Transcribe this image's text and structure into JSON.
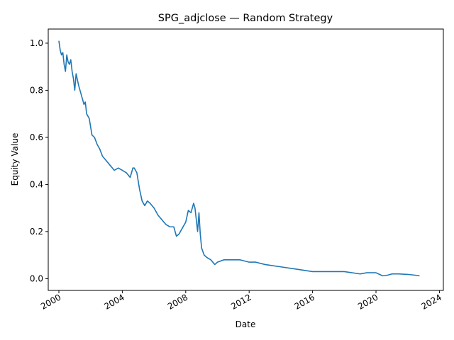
{
  "chart_data": {
    "type": "line",
    "title": "SPG_adjclose — Random Strategy",
    "xlabel": "Date",
    "ylabel": "Equity Value",
    "xlim": [
      "1999-05-01",
      "2024-04-01"
    ],
    "ylim": [
      -0.05,
      1.06
    ],
    "xticks": [
      "2000",
      "2004",
      "2008",
      "2012",
      "2016",
      "2020",
      "2024"
    ],
    "yticks": [
      "0.0",
      "0.2",
      "0.4",
      "0.6",
      "0.8",
      "1.0"
    ],
    "grid": false,
    "line_color": "#1f77b4",
    "series": [
      {
        "x": [
          "2000-01-01",
          "2000-02-01",
          "2000-03-01",
          "2000-04-01",
          "2000-05-01",
          "2000-06-01",
          "2000-07-01",
          "2000-08-01",
          "2000-09-01",
          "2000-10-01",
          "2000-11-01",
          "2000-12-01",
          "2001-01-01",
          "2001-02-01",
          "2001-04-01",
          "2001-06-01",
          "2001-08-01",
          "2001-09-01",
          "2001-10-01",
          "2001-12-01",
          "2002-02-01",
          "2002-04-01",
          "2002-06-01",
          "2002-08-01",
          "2002-10-01",
          "2003-01-01",
          "2003-04-01",
          "2003-07-01",
          "2003-10-01",
          "2004-01-01",
          "2004-04-01",
          "2004-07-01",
          "2004-09-01",
          "2004-10-01",
          "2004-12-01",
          "2005-02-01",
          "2005-04-01",
          "2005-06-01",
          "2005-08-01",
          "2005-10-01",
          "2006-01-01",
          "2006-04-01",
          "2006-07-01",
          "2006-10-01",
          "2007-01-01",
          "2007-04-01",
          "2007-06-01",
          "2007-08-01",
          "2007-10-01",
          "2008-01-01",
          "2008-03-01",
          "2008-05-01",
          "2008-07-01",
          "2008-08-01",
          "2008-09-01",
          "2008-10-01",
          "2008-11-01",
          "2008-12-01",
          "2009-01-01",
          "2009-03-01",
          "2009-05-01",
          "2009-08-01",
          "2009-11-01",
          "2010-01-01",
          "2010-06-01",
          "2011-01-01",
          "2011-06-01",
          "2012-01-01",
          "2012-06-01",
          "2013-01-01",
          "2014-01-01",
          "2015-01-01",
          "2016-01-01",
          "2017-01-01",
          "2018-01-01",
          "2019-01-01",
          "2019-06-01",
          "2020-01-01",
          "2020-03-01",
          "2020-06-01",
          "2020-10-01",
          "2021-01-01",
          "2021-06-01",
          "2022-01-01",
          "2022-06-01",
          "2022-10-01"
        ],
        "y": [
          1.01,
          0.97,
          0.95,
          0.96,
          0.91,
          0.88,
          0.95,
          0.92,
          0.91,
          0.93,
          0.88,
          0.85,
          0.8,
          0.87,
          0.82,
          0.78,
          0.74,
          0.75,
          0.7,
          0.68,
          0.61,
          0.6,
          0.57,
          0.55,
          0.52,
          0.5,
          0.48,
          0.46,
          0.47,
          0.46,
          0.45,
          0.43,
          0.47,
          0.47,
          0.45,
          0.38,
          0.33,
          0.31,
          0.33,
          0.32,
          0.3,
          0.27,
          0.25,
          0.23,
          0.22,
          0.22,
          0.18,
          0.19,
          0.21,
          0.24,
          0.29,
          0.28,
          0.32,
          0.3,
          0.25,
          0.2,
          0.28,
          0.19,
          0.13,
          0.1,
          0.09,
          0.08,
          0.06,
          0.07,
          0.08,
          0.08,
          0.08,
          0.07,
          0.07,
          0.06,
          0.05,
          0.04,
          0.03,
          0.03,
          0.03,
          0.02,
          0.025,
          0.025,
          0.02,
          0.012,
          0.015,
          0.02,
          0.02,
          0.018,
          0.015,
          0.012
        ]
      }
    ]
  }
}
